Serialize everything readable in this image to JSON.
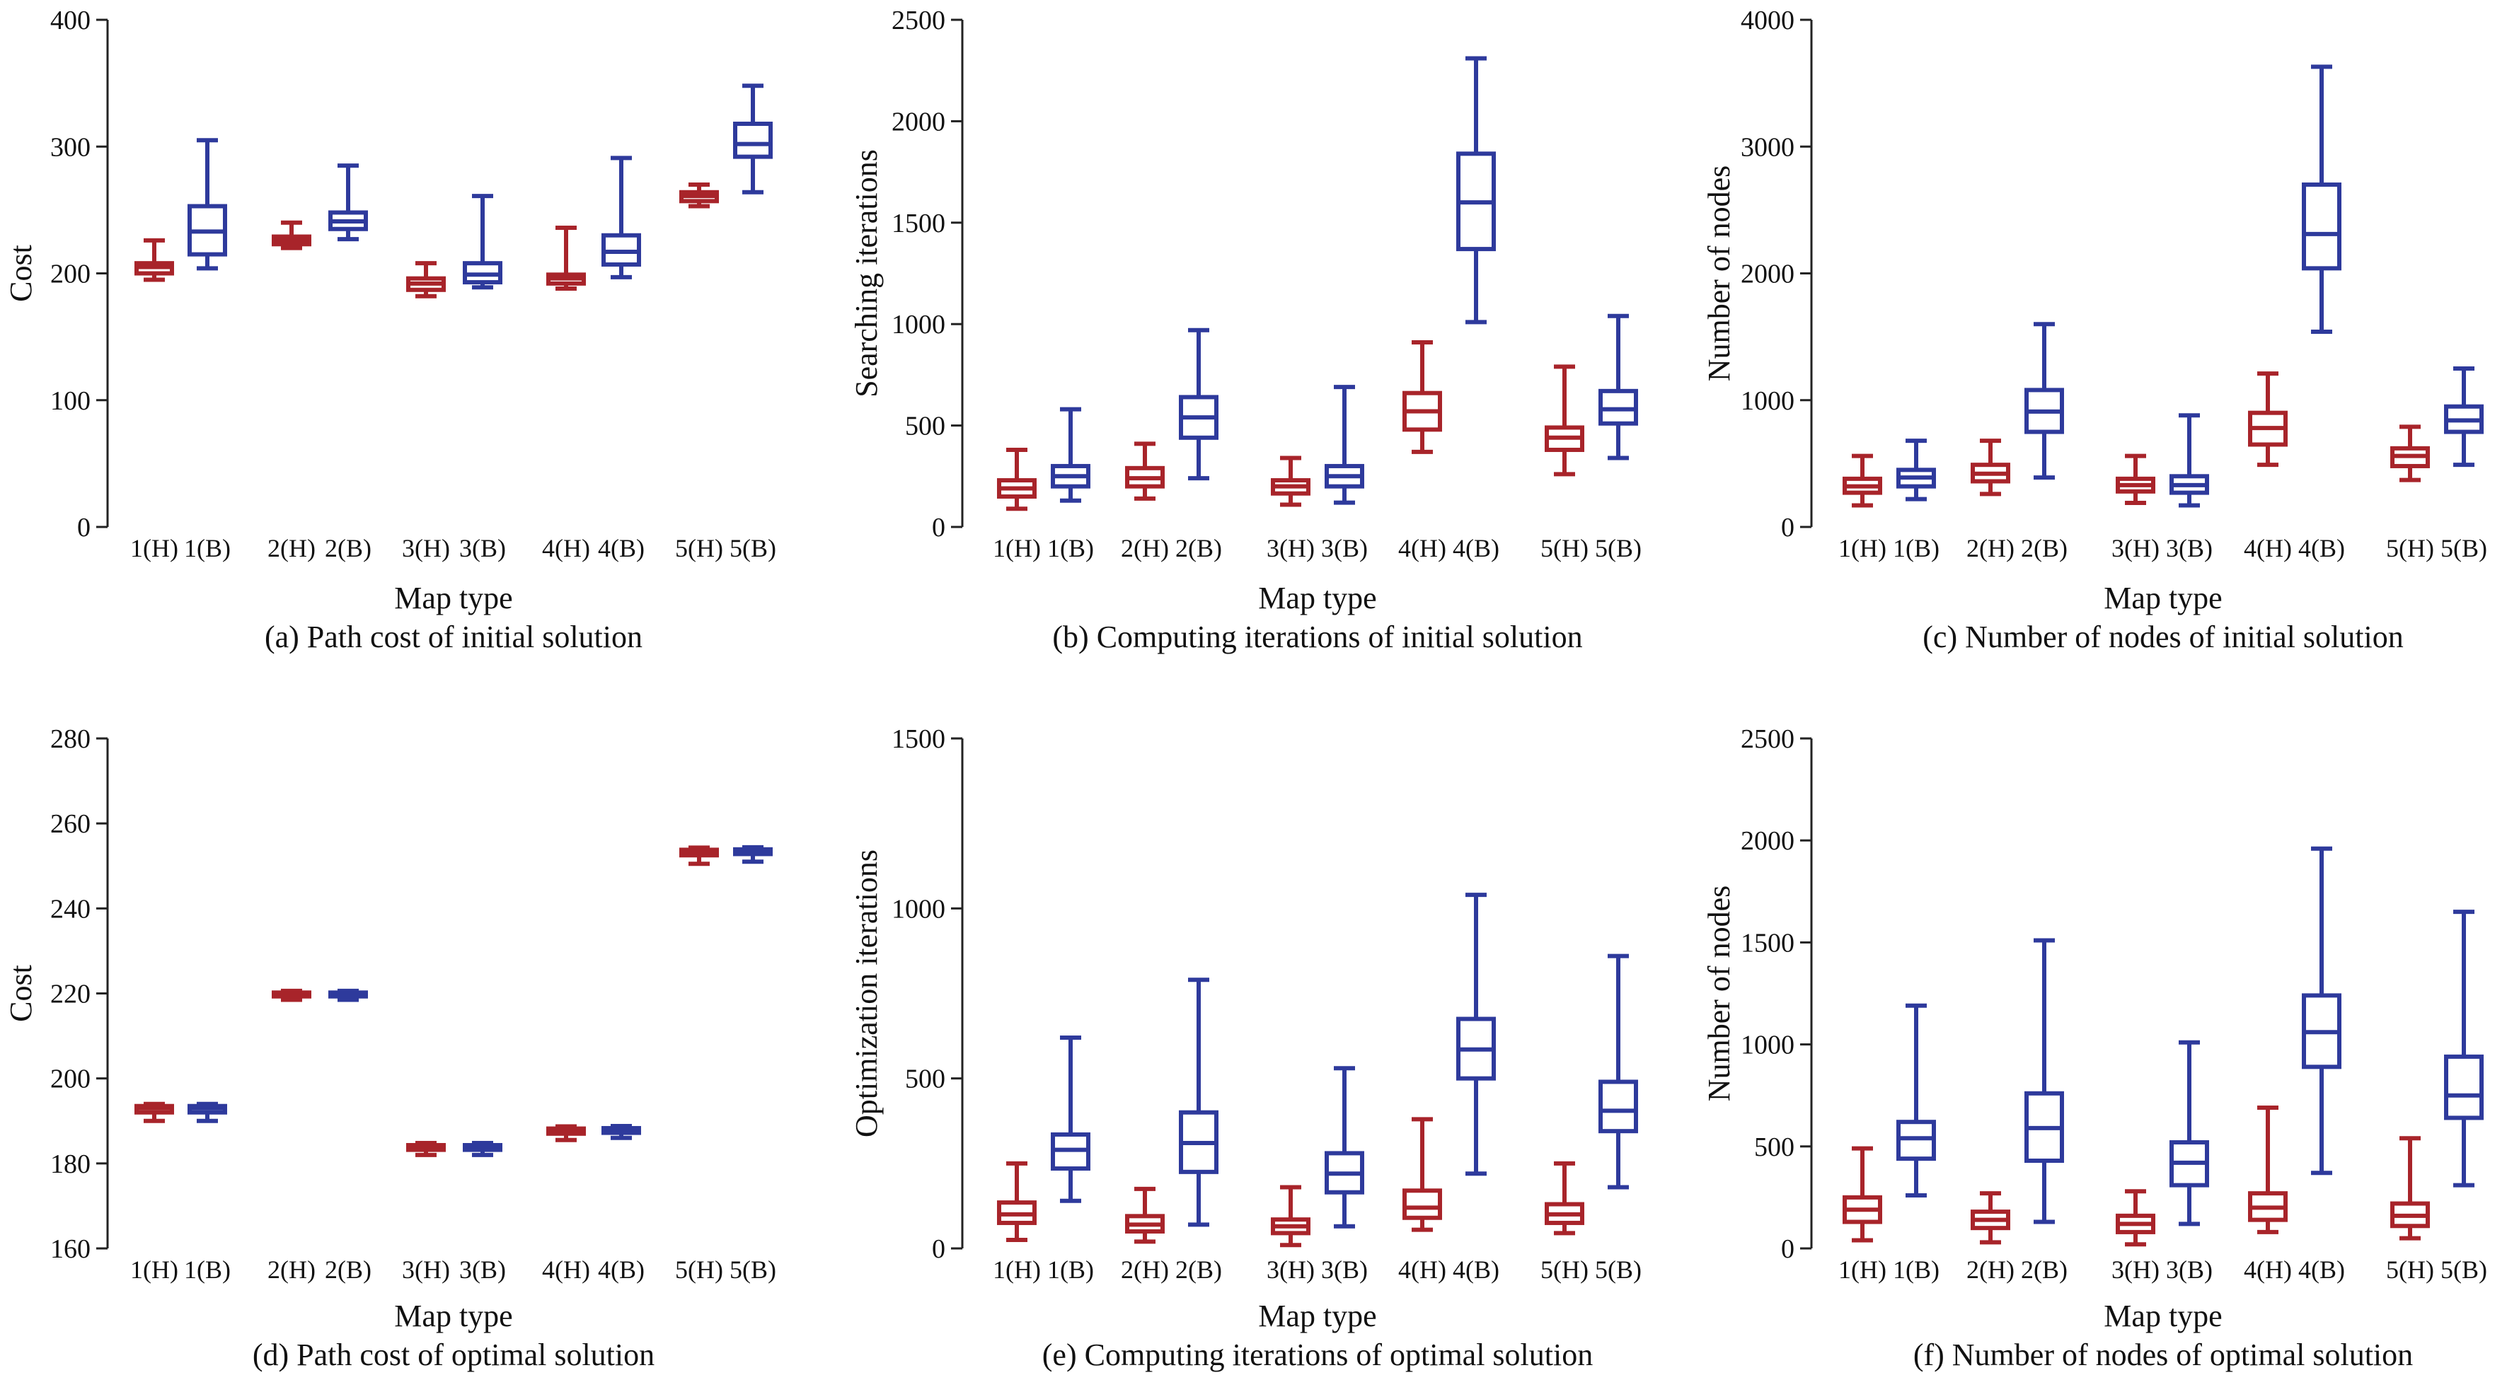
{
  "colors": {
    "H": "#a8242a",
    "B": "#2e3a9c"
  },
  "chart_data": [
    {
      "type": "boxplot",
      "caption": "(a) Path cost of initial solution",
      "xlabel": "Map type",
      "ylabel": "Cost",
      "ylim": [
        0,
        400
      ],
      "yticks": [
        0,
        100,
        200,
        300,
        400
      ],
      "categories": [
        "1(H)",
        "1(B)",
        "2(H)",
        "2(B)",
        "3(H)",
        "3(B)",
        "4(H)",
        "4(B)",
        "5(H)",
        "5(B)"
      ],
      "boxes": [
        {
          "min": 195,
          "q1": 200,
          "median": 205,
          "q3": 208,
          "max": 226
        },
        {
          "min": 204,
          "q1": 215,
          "median": 233,
          "q3": 253,
          "max": 305
        },
        {
          "min": 220,
          "q1": 223,
          "median": 226,
          "q3": 229,
          "max": 240
        },
        {
          "min": 227,
          "q1": 235,
          "median": 241,
          "q3": 248,
          "max": 285
        },
        {
          "min": 182,
          "q1": 187,
          "median": 192,
          "q3": 196,
          "max": 208
        },
        {
          "min": 189,
          "q1": 193,
          "median": 199,
          "q3": 208,
          "max": 261
        },
        {
          "min": 188,
          "q1": 192,
          "median": 196,
          "q3": 199,
          "max": 236
        },
        {
          "min": 197,
          "q1": 207,
          "median": 217,
          "q3": 230,
          "max": 291
        },
        {
          "min": 253,
          "q1": 257,
          "median": 261,
          "q3": 264,
          "max": 270
        },
        {
          "min": 264,
          "q1": 292,
          "median": 302,
          "q3": 318,
          "max": 348
        }
      ]
    },
    {
      "type": "boxplot",
      "caption": "(b) Computing iterations of initial solution",
      "xlabel": "Map type",
      "ylabel": "Searching iterations",
      "ylim": [
        0,
        2500
      ],
      "yticks": [
        0,
        500,
        1000,
        1500,
        2000,
        2500
      ],
      "categories": [
        "1(H)",
        "1(B)",
        "2(H)",
        "2(B)",
        "3(H)",
        "3(B)",
        "4(H)",
        "4(B)",
        "5(H)",
        "5(B)"
      ],
      "boxes": [
        {
          "min": 90,
          "q1": 150,
          "median": 190,
          "q3": 230,
          "max": 380
        },
        {
          "min": 130,
          "q1": 200,
          "median": 250,
          "q3": 300,
          "max": 580
        },
        {
          "min": 140,
          "q1": 200,
          "median": 240,
          "q3": 290,
          "max": 410
        },
        {
          "min": 240,
          "q1": 440,
          "median": 540,
          "q3": 640,
          "max": 970
        },
        {
          "min": 110,
          "q1": 165,
          "median": 200,
          "q3": 230,
          "max": 340
        },
        {
          "min": 120,
          "q1": 200,
          "median": 250,
          "q3": 300,
          "max": 690
        },
        {
          "min": 370,
          "q1": 480,
          "median": 570,
          "q3": 660,
          "max": 910
        },
        {
          "min": 1010,
          "q1": 1370,
          "median": 1600,
          "q3": 1840,
          "max": 2310
        },
        {
          "min": 260,
          "q1": 380,
          "median": 440,
          "q3": 490,
          "max": 790
        },
        {
          "min": 340,
          "q1": 510,
          "median": 580,
          "q3": 670,
          "max": 1040
        }
      ]
    },
    {
      "type": "boxplot",
      "caption": "(c) Number of nodes of initial solution",
      "xlabel": "Map type",
      "ylabel": "Number of nodes",
      "ylim": [
        0,
        4000
      ],
      "yticks": [
        0,
        1000,
        2000,
        3000,
        4000
      ],
      "categories": [
        "1(H)",
        "1(B)",
        "2(H)",
        "2(B)",
        "3(H)",
        "3(B)",
        "4(H)",
        "4(B)",
        "5(H)",
        "5(B)"
      ],
      "boxes": [
        {
          "min": 170,
          "q1": 270,
          "median": 320,
          "q3": 380,
          "max": 560
        },
        {
          "min": 220,
          "q1": 320,
          "median": 390,
          "q3": 450,
          "max": 680
        },
        {
          "min": 260,
          "q1": 360,
          "median": 420,
          "q3": 490,
          "max": 680
        },
        {
          "min": 390,
          "q1": 750,
          "median": 910,
          "q3": 1080,
          "max": 1600
        },
        {
          "min": 190,
          "q1": 280,
          "median": 330,
          "q3": 380,
          "max": 560
        },
        {
          "min": 170,
          "q1": 270,
          "median": 330,
          "q3": 400,
          "max": 880
        },
        {
          "min": 490,
          "q1": 650,
          "median": 780,
          "q3": 900,
          "max": 1210
        },
        {
          "min": 1540,
          "q1": 2040,
          "median": 2310,
          "q3": 2700,
          "max": 3630
        },
        {
          "min": 370,
          "q1": 480,
          "median": 560,
          "q3": 620,
          "max": 790
        },
        {
          "min": 490,
          "q1": 750,
          "median": 840,
          "q3": 950,
          "max": 1250
        }
      ]
    },
    {
      "type": "boxplot",
      "caption": "(d) Path cost of optimal solution",
      "xlabel": "Map type",
      "ylabel": "Cost",
      "ylim": [
        160,
        280
      ],
      "yticks": [
        160,
        180,
        200,
        220,
        240,
        260,
        280
      ],
      "categories": [
        "1(H)",
        "1(B)",
        "2(H)",
        "2(B)",
        "3(H)",
        "3(B)",
        "4(H)",
        "4(B)",
        "5(H)",
        "5(B)"
      ],
      "boxes": [
        {
          "min": 190,
          "q1": 192,
          "median": 193,
          "q3": 193.5,
          "max": 194
        },
        {
          "min": 190,
          "q1": 192,
          "median": 193,
          "q3": 193.5,
          "max": 194
        },
        {
          "min": 218.5,
          "q1": 219.3,
          "median": 219.8,
          "q3": 220.2,
          "max": 220.6
        },
        {
          "min": 218.5,
          "q1": 219.3,
          "median": 219.8,
          "q3": 220.2,
          "max": 220.6
        },
        {
          "min": 182,
          "q1": 183.2,
          "median": 183.8,
          "q3": 184.3,
          "max": 184.8
        },
        {
          "min": 182,
          "q1": 183.2,
          "median": 183.8,
          "q3": 184.3,
          "max": 184.8
        },
        {
          "min": 185.5,
          "q1": 187,
          "median": 187.7,
          "q3": 188.2,
          "max": 188.7
        },
        {
          "min": 186,
          "q1": 187.2,
          "median": 187.8,
          "q3": 188.3,
          "max": 188.8
        },
        {
          "min": 250.5,
          "q1": 252.5,
          "median": 253.3,
          "q3": 253.8,
          "max": 254.3
        },
        {
          "min": 251,
          "q1": 252.8,
          "median": 253.4,
          "q3": 253.9,
          "max": 254.4
        }
      ]
    },
    {
      "type": "boxplot",
      "caption": "(e) Computing iterations of optimal solution",
      "xlabel": "Map type",
      "ylabel": "Optimization iterations",
      "ylim": [
        0,
        1500
      ],
      "yticks": [
        0,
        500,
        1000,
        1500
      ],
      "categories": [
        "1(H)",
        "1(B)",
        "2(H)",
        "2(B)",
        "3(H)",
        "3(B)",
        "4(H)",
        "4(B)",
        "5(H)",
        "5(B)"
      ],
      "boxes": [
        {
          "min": 25,
          "q1": 75,
          "median": 100,
          "q3": 135,
          "max": 250
        },
        {
          "min": 140,
          "q1": 235,
          "median": 290,
          "q3": 335,
          "max": 620
        },
        {
          "min": 20,
          "q1": 50,
          "median": 70,
          "q3": 95,
          "max": 175
        },
        {
          "min": 70,
          "q1": 225,
          "median": 310,
          "q3": 400,
          "max": 790
        },
        {
          "min": 10,
          "q1": 45,
          "median": 65,
          "q3": 85,
          "max": 180
        },
        {
          "min": 65,
          "q1": 165,
          "median": 220,
          "q3": 280,
          "max": 530
        },
        {
          "min": 55,
          "q1": 90,
          "median": 120,
          "q3": 170,
          "max": 380
        },
        {
          "min": 220,
          "q1": 500,
          "median": 585,
          "q3": 675,
          "max": 1040
        },
        {
          "min": 45,
          "q1": 75,
          "median": 100,
          "q3": 130,
          "max": 250
        },
        {
          "min": 180,
          "q1": 345,
          "median": 405,
          "q3": 490,
          "max": 860
        }
      ]
    },
    {
      "type": "boxplot",
      "caption": "(f) Number of nodes of optimal solution",
      "xlabel": "Map type",
      "ylabel": "Number of nodes",
      "ylim": [
        0,
        2500
      ],
      "yticks": [
        0,
        500,
        1000,
        1500,
        2000,
        2500
      ],
      "categories": [
        "1(H)",
        "1(B)",
        "2(H)",
        "2(B)",
        "3(H)",
        "3(B)",
        "4(H)",
        "4(B)",
        "5(H)",
        "5(B)"
      ],
      "boxes": [
        {
          "min": 40,
          "q1": 130,
          "median": 190,
          "q3": 250,
          "max": 490
        },
        {
          "min": 260,
          "q1": 440,
          "median": 540,
          "q3": 620,
          "max": 1190
        },
        {
          "min": 30,
          "q1": 100,
          "median": 140,
          "q3": 180,
          "max": 270
        },
        {
          "min": 130,
          "q1": 430,
          "median": 590,
          "q3": 760,
          "max": 1510
        },
        {
          "min": 20,
          "q1": 80,
          "median": 120,
          "q3": 160,
          "max": 280
        },
        {
          "min": 120,
          "q1": 310,
          "median": 420,
          "q3": 520,
          "max": 1010
        },
        {
          "min": 80,
          "q1": 140,
          "median": 200,
          "q3": 270,
          "max": 690
        },
        {
          "min": 370,
          "q1": 890,
          "median": 1060,
          "q3": 1240,
          "max": 1960
        },
        {
          "min": 50,
          "q1": 110,
          "median": 160,
          "q3": 220,
          "max": 540
        },
        {
          "min": 310,
          "q1": 640,
          "median": 750,
          "q3": 940,
          "max": 1650
        }
      ]
    }
  ]
}
